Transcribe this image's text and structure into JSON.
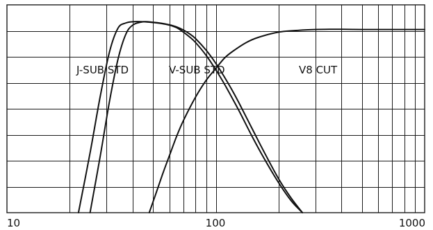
{
  "chart_data": {
    "type": "line",
    "x_scale": "log",
    "xlim": [
      10,
      1000
    ],
    "ylim": [
      0,
      8
    ],
    "grid": true,
    "x_tick_labels": [
      {
        "value": 10,
        "label": "10"
      },
      {
        "value": 100,
        "label": "100"
      },
      {
        "value": 1000,
        "label": "1000"
      }
    ],
    "series_labels": [
      {
        "text": "J-SUB STD",
        "series_index": 0
      },
      {
        "text": "V-SUB STD",
        "series_index": 1
      },
      {
        "text": "V8 CUT",
        "series_index": 2
      }
    ],
    "series": [
      {
        "name": "J-SUB STD",
        "x": [
          22,
          25,
          28,
          31,
          34,
          37,
          40,
          45,
          50,
          55,
          60,
          65,
          70,
          75,
          80,
          90,
          100,
          110,
          120,
          130,
          150,
          170,
          200,
          230,
          260
        ],
        "y": [
          0,
          2.3,
          4.5,
          6.2,
          7.1,
          7.3,
          7.35,
          7.35,
          7.32,
          7.28,
          7.22,
          7.12,
          6.95,
          6.76,
          6.55,
          6.05,
          5.5,
          4.95,
          4.4,
          3.88,
          2.9,
          2.1,
          1.15,
          0.45,
          0
        ]
      },
      {
        "name": "V-SUB STD",
        "x": [
          25,
          28,
          31,
          34,
          37,
          40,
          45,
          50,
          55,
          60,
          65,
          70,
          75,
          80,
          90,
          100,
          110,
          120,
          130,
          150,
          170,
          200,
          230,
          260
        ],
        "y": [
          0,
          2.2,
          4.3,
          5.9,
          6.85,
          7.22,
          7.35,
          7.33,
          7.29,
          7.23,
          7.15,
          7.03,
          6.88,
          6.7,
          6.25,
          5.75,
          5.22,
          4.7,
          4.18,
          3.2,
          2.35,
          1.3,
          0.55,
          0
        ]
      },
      {
        "name": "V8 CUT",
        "x": [
          48,
          52,
          56,
          60,
          65,
          70,
          80,
          90,
          100,
          110,
          120,
          140,
          160,
          200,
          250,
          300,
          350,
          400,
          500,
          600,
          800,
          1000
        ],
        "y": [
          0,
          0.8,
          1.55,
          2.2,
          2.95,
          3.55,
          4.45,
          5.1,
          5.55,
          5.95,
          6.2,
          6.55,
          6.75,
          6.95,
          7.02,
          7.05,
          7.06,
          7.06,
          7.05,
          7.05,
          7.05,
          7.05
        ]
      }
    ]
  }
}
